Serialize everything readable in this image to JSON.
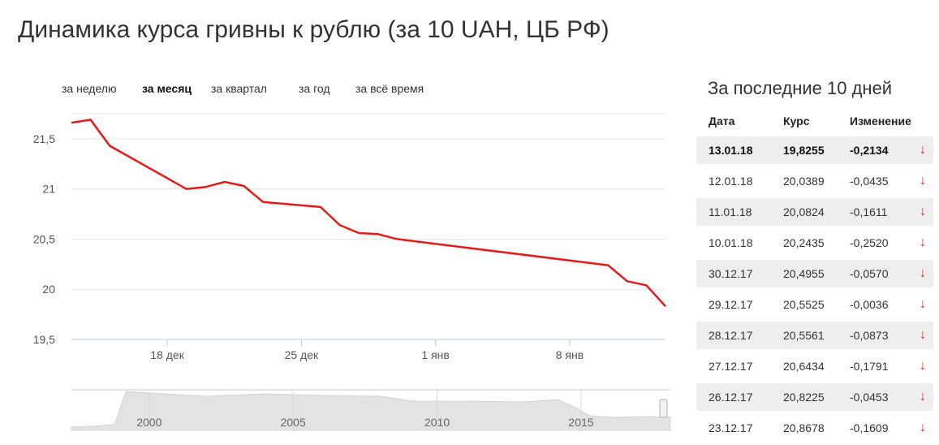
{
  "page": {
    "title": "Динамика курса гривны к рублю (за 10 UAH, ЦБ РФ)"
  },
  "period_tabs": [
    {
      "label": "за неделю",
      "active": false
    },
    {
      "label": "за месяц",
      "active": true
    },
    {
      "label": "за квартал",
      "active": false
    },
    {
      "label": "за год",
      "active": false
    },
    {
      "label": "за всё время",
      "active": false
    }
  ],
  "colors": {
    "line": "#e31b1b",
    "grid": "#e6e6e6",
    "navigator_fill": "#e3e3e3",
    "row_stripe": "#eeeeee",
    "arrow_down": "#e31b1b"
  },
  "chart_data": {
    "type": "line",
    "title": "",
    "xlabel": "",
    "ylabel": "",
    "ylim": [
      19.5,
      21.75
    ],
    "y_ticks": [
      "19,5",
      "20",
      "20,5",
      "21",
      "21,5"
    ],
    "x_ticks": [
      "18 дек",
      "25 дек",
      "1 янв",
      "8 янв"
    ],
    "x_range": [
      "2017-12-13",
      "2018-01-13"
    ],
    "grid": true,
    "legend": "none",
    "x": [
      "2017-12-13",
      "2017-12-14",
      "2017-12-15",
      "2017-12-19",
      "2017-12-20",
      "2017-12-21",
      "2017-12-22",
      "2017-12-23",
      "2017-12-26",
      "2017-12-27",
      "2017-12-28",
      "2017-12-29",
      "2017-12-30",
      "2018-01-10",
      "2018-01-11",
      "2018-01-12",
      "2018-01-13"
    ],
    "series": [
      {
        "values": [
          21.66,
          21.69,
          21.43,
          21.0,
          21.02,
          21.07,
          21.03,
          20.87,
          20.82,
          20.64,
          20.56,
          20.55,
          20.5,
          20.24,
          20.08,
          20.04,
          19.83
        ]
      }
    ],
    "navigator": {
      "x_ticks": [
        "2000",
        "2005",
        "2010",
        "2015"
      ]
    }
  },
  "side_panel": {
    "title": "За последние 10 дней",
    "headers": {
      "date": "Дата",
      "rate": "Курс",
      "change": "Изменение"
    },
    "rows": [
      {
        "date": "13.01.18",
        "rate": "19,8255",
        "change": "-0,2134",
        "arrow": "↓"
      },
      {
        "date": "12.01.18",
        "rate": "20,0389",
        "change": "-0,0435",
        "arrow": "↓"
      },
      {
        "date": "11.01.18",
        "rate": "20,0824",
        "change": "-0,1611",
        "arrow": "↓"
      },
      {
        "date": "10.01.18",
        "rate": "20,2435",
        "change": "-0,2520",
        "arrow": "↓"
      },
      {
        "date": "30.12.17",
        "rate": "20,4955",
        "change": "-0,0570",
        "arrow": "↓"
      },
      {
        "date": "29.12.17",
        "rate": "20,5525",
        "change": "-0,0036",
        "arrow": "↓"
      },
      {
        "date": "28.12.17",
        "rate": "20,5561",
        "change": "-0,0873",
        "arrow": "↓"
      },
      {
        "date": "27.12.17",
        "rate": "20,6434",
        "change": "-0,1791",
        "arrow": "↓"
      },
      {
        "date": "26.12.17",
        "rate": "20,8225",
        "change": "-0,0453",
        "arrow": "↓"
      },
      {
        "date": "23.12.17",
        "rate": "20,8678",
        "change": "-0,1609",
        "arrow": "↓"
      }
    ]
  }
}
